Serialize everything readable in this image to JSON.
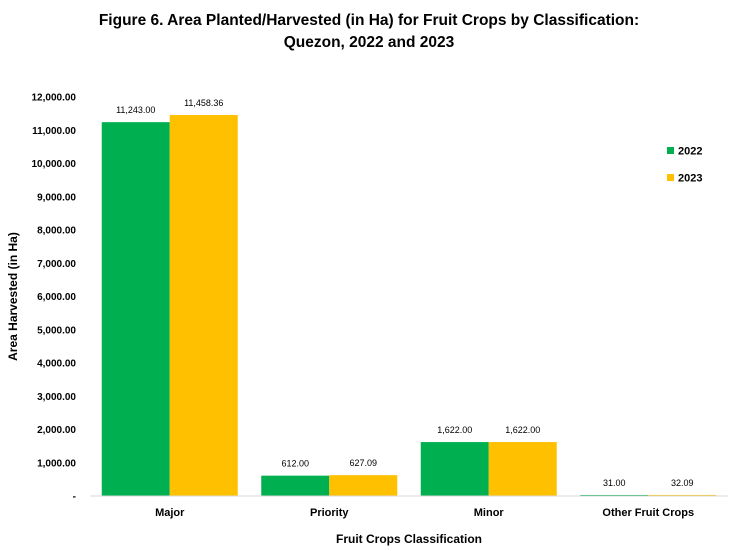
{
  "chart_data": {
    "type": "bar",
    "title_line1": "Figure 6. Area Planted/Harvested (in Ha) for Fruit Crops by Classification:",
    "title_line2": "Quezon, 2022 and 2023",
    "xlabel": "Fruit Crops Classification",
    "ylabel": "Area Harvested (in Ha)",
    "categories": [
      "Major",
      "Priority",
      "Minor",
      "Other Fruit Crops"
    ],
    "series": [
      {
        "name": "2022",
        "color": "#00b050",
        "values": [
          11243.0,
          612.0,
          1622.0,
          31.0
        ],
        "labels": [
          "11,243.00",
          "612.00",
          "1,622.00",
          "31.00"
        ]
      },
      {
        "name": "2023",
        "color": "#ffc000",
        "values": [
          11458.36,
          627.09,
          1622.0,
          32.09
        ],
        "labels": [
          "11,458.36",
          "627.09",
          "1,622.00",
          "32.09"
        ]
      }
    ],
    "ylim": [
      0,
      12000
    ],
    "yticks": [
      0,
      1000,
      2000,
      3000,
      4000,
      5000,
      6000,
      7000,
      8000,
      9000,
      10000,
      11000,
      12000
    ],
    "ytick_labels": [
      "-",
      "1,000.00",
      "2,000.00",
      "3,000.00",
      "4,000.00",
      "5,000.00",
      "6,000.00",
      "7,000.00",
      "8,000.00",
      "9,000.00",
      "10,000.00",
      "11,000.00",
      "12,000.00"
    ],
    "grid": false,
    "legend_position": "right"
  }
}
